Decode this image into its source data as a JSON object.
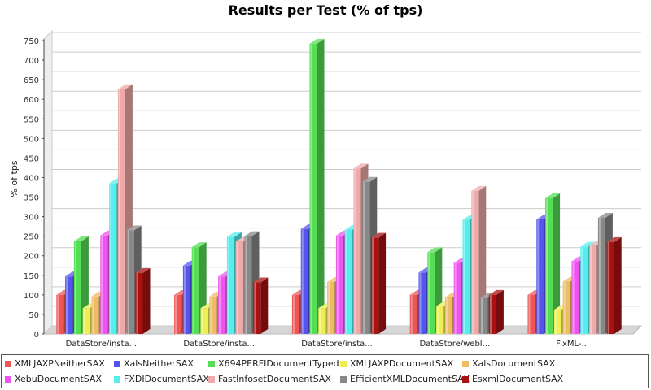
{
  "chart_data": {
    "type": "bar",
    "title": "Results per Test (% of tps)",
    "ylabel": "% of tps",
    "xlabel": "",
    "ylim": [
      0,
      775
    ],
    "yticks": [
      0,
      50,
      100,
      150,
      200,
      250,
      300,
      350,
      400,
      450,
      500,
      550,
      600,
      650,
      700,
      750
    ],
    "grid": true,
    "legend_position": "bottom",
    "categories": [
      "DataStore/insta...",
      "DataStore/insta...",
      "DataStore/insta...",
      "DataStore/webl...",
      "FixML-..."
    ],
    "series": [
      {
        "name": "XMLJAXPNeitherSAX",
        "color": "#ee5555",
        "values": [
          100,
          100,
          100,
          100,
          100
        ]
      },
      {
        "name": "XalsNeitherSAX",
        "color": "#5555ee",
        "values": [
          147,
          175,
          268,
          157,
          293
        ]
      },
      {
        "name": "X694PERFIDocumentTyped",
        "color": "#55dd55",
        "values": [
          237,
          222,
          742,
          209,
          347
        ]
      },
      {
        "name": "XMLJAXPDocumentSAX",
        "color": "#eeee55",
        "values": [
          66,
          66,
          66,
          71,
          62
        ]
      },
      {
        "name": "XalsDocumentSAX",
        "color": "#eebb66",
        "values": [
          96,
          96,
          133,
          94,
          134
        ]
      },
      {
        "name": "XebuDocumentSAX",
        "color": "#ee55ee",
        "values": [
          252,
          147,
          252,
          182,
          186
        ]
      },
      {
        "name": "FXDIDocumentSAX",
        "color": "#55eeee",
        "values": [
          385,
          248,
          266,
          292,
          223
        ]
      },
      {
        "name": "FastInfosetDocumentSAX",
        "color": "#eeaaaa",
        "values": [
          626,
          236,
          423,
          366,
          226
        ]
      },
      {
        "name": "EfficientXMLDocumentSAX",
        "color": "#888888",
        "values": [
          265,
          250,
          389,
          92,
          297
        ]
      },
      {
        "name": "EsxmlDocumentSAX",
        "color": "#aa1111",
        "values": [
          156,
          132,
          246,
          100,
          235
        ]
      }
    ]
  }
}
